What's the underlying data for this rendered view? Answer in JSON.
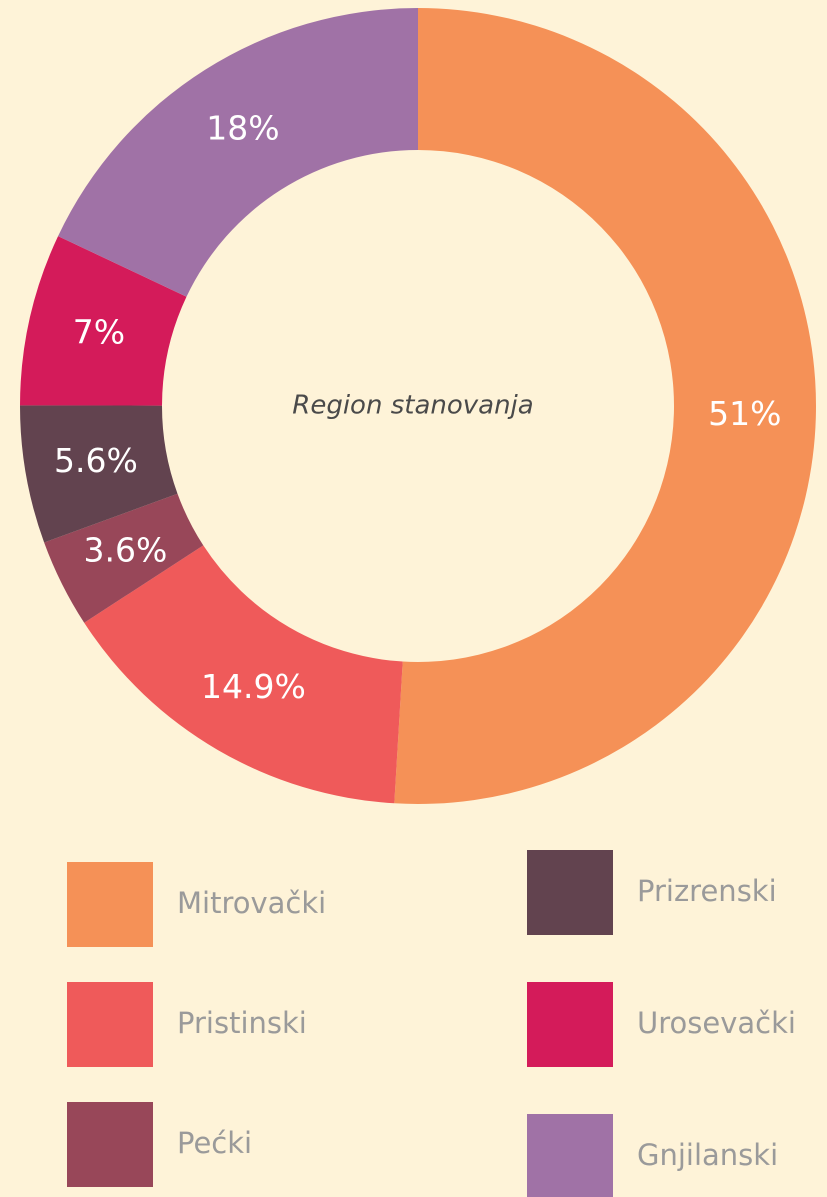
{
  "chart_data": {
    "type": "donut",
    "center_label": "Region stanovanja",
    "categories": [
      "Mitrovački",
      "Pristinski",
      "Pećki",
      "Prizrenski",
      "Urosevački",
      "Gnjilanski"
    ],
    "values": [
      51,
      14.9,
      3.6,
      5.6,
      7,
      18
    ],
    "value_labels": [
      "51%",
      "14.9%",
      "3.6%",
      "5.6%",
      "7%",
      "18%"
    ],
    "colors": [
      "#f59157",
      "#ef5a5a",
      "#984759",
      "#62434f",
      "#d41b5a",
      "#a072a6"
    ]
  }
}
